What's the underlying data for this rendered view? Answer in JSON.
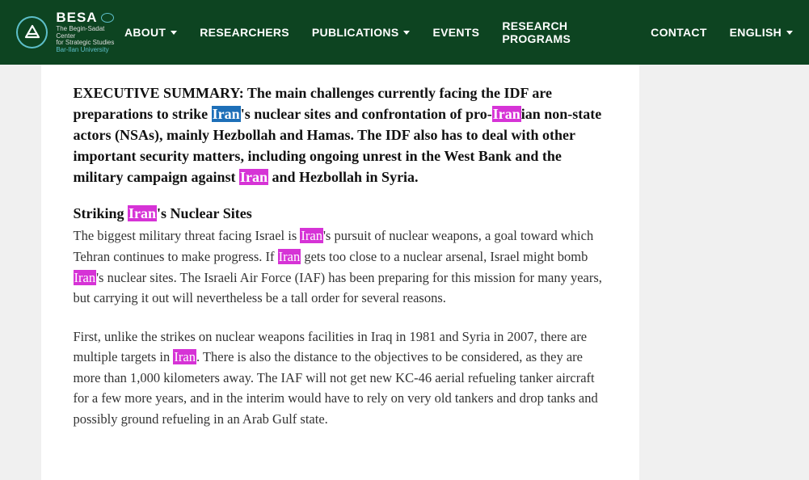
{
  "header": {
    "logo": {
      "name": "BESA",
      "sub1": "The Begin-Sadat Center",
      "sub2": "for Strategic Studies",
      "sub3": "Bar-Ilan University"
    },
    "nav": [
      {
        "label": "ABOUT",
        "dropdown": true
      },
      {
        "label": "RESEARCHERS",
        "dropdown": false
      },
      {
        "label": "PUBLICATIONS",
        "dropdown": true
      },
      {
        "label": "EVENTS",
        "dropdown": false
      },
      {
        "label": "RESEARCH PROGRAMS",
        "dropdown": false
      },
      {
        "label": "CONTACT",
        "dropdown": false
      },
      {
        "label": "ENGLISH",
        "dropdown": true
      }
    ]
  },
  "article": {
    "summary": {
      "lead": "EXECUTIVE SUMMARY:  The main challenges currently facing the IDF are preparations to strike ",
      "h1": "Iran",
      "t2": "'s nuclear sites and confrontation of pro-",
      "h2": "Iran",
      "t3": "ian non-state actors (NSAs), mainly Hezbollah and Hamas. The IDF also has to deal with other important security matters, including ongoing unrest in the West Bank and the military campaign against ",
      "h3": "Iran",
      "t4": " and Hezbollah in Syria."
    },
    "section1": {
      "title_pre": "Striking ",
      "title_hl": "Iran",
      "title_post": "'s Nuclear Sites",
      "p1a": "The biggest military threat facing Israel is ",
      "p1h1": "Iran",
      "p1b": "'s pursuit of nuclear weapons, a goal toward which Tehran continues to make progress. If ",
      "p1h2": "Iran",
      "p1c": " gets too close to a nuclear arsenal, Israel might bomb ",
      "p1h3": "Iran",
      "p1d": "'s nuclear sites. The Israeli Air Force (IAF) has been preparing for this mission for many years, but carrying it out will nevertheless be a tall order for several reasons."
    },
    "section2": {
      "p2a": "First, unlike the strikes on nuclear weapons facilities in Iraq in 1981 and Syria in 2007, there are multiple targets in ",
      "p2h1": "Iran",
      "p2b": ". There is also the distance to the objectives to be considered, as they are more than 1,000 kilometers away. The IAF will not get new KC-46 aerial refueling tanker aircraft for a few more years, and in the interim would have to rely on very old tankers and drop tanks and possibly ground refueling in an Arab Gulf state."
    }
  },
  "colors": {
    "header_bg": "#0d4421",
    "accent": "#5dbfc9",
    "hl_blue": "#1d6fb8",
    "hl_pink": "#d633d6",
    "page_bg": "#f0f0f0"
  }
}
